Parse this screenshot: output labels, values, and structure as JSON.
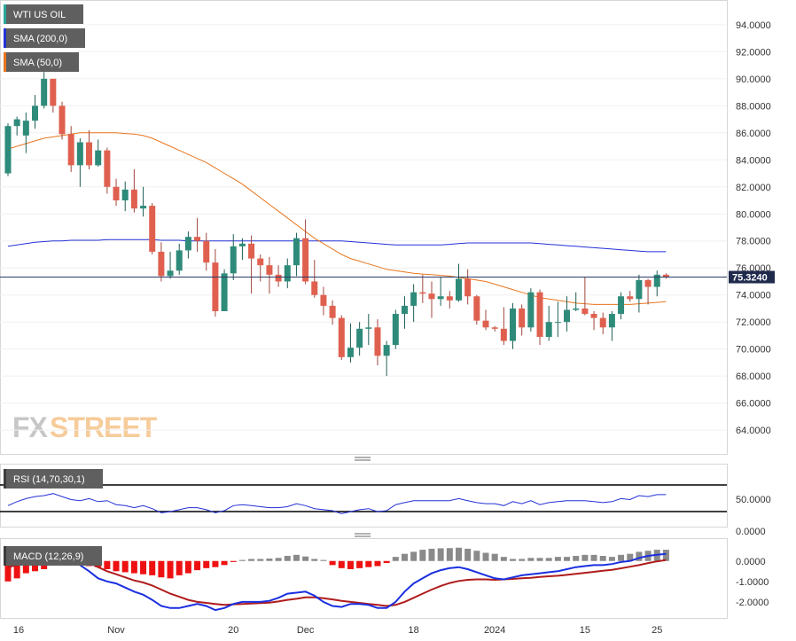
{
  "chart_data": [
    {
      "type": "candlestick",
      "title": "WTI US OIL",
      "legend": [
        {
          "label": "WTI US OIL",
          "color": "#26a69a"
        },
        {
          "label": "SMA (200,0)",
          "color": "#2331d6"
        },
        {
          "label": "SMA (50,0)",
          "color": "#e8761f"
        }
      ],
      "y_ticks": [
        "94.0000",
        "92.0000",
        "90.0000",
        "88.0000",
        "86.0000",
        "84.0000",
        "82.0000",
        "80.0000",
        "78.0000",
        "76.0000",
        "74.0000",
        "72.0000",
        "70.0000",
        "68.0000",
        "66.0000",
        "64.0000"
      ],
      "ylim": [
        62.5,
        95.5
      ],
      "last_price": "75.3240",
      "x_ticks": [
        {
          "label": "16",
          "i": 0
        },
        {
          "label": "Nov",
          "i": 12
        },
        {
          "label": "20",
          "i": 25
        },
        {
          "label": "Dec",
          "i": 33
        },
        {
          "label": "18",
          "i": 45
        },
        {
          "label": "2024",
          "i": 54
        },
        {
          "label": "15",
          "i": 64
        },
        {
          "label": "25",
          "i": 72
        }
      ],
      "candles": [
        [
          83.0,
          86.5,
          82.8,
          86.7
        ],
        [
          86.5,
          87.0,
          85.8,
          87.2
        ],
        [
          85.8,
          86.9,
          84.5,
          87.5
        ],
        [
          86.9,
          88.0,
          86.3,
          88.8
        ],
        [
          88.0,
          90.0,
          87.8,
          90.5
        ],
        [
          90.0,
          88.0,
          87.5,
          89.8
        ],
        [
          88.0,
          85.9,
          85.5,
          88.3
        ],
        [
          85.9,
          83.6,
          83.1,
          86.5
        ],
        [
          83.6,
          85.3,
          82.0,
          85.6
        ],
        [
          85.3,
          83.6,
          83.3,
          86.2
        ],
        [
          83.6,
          84.7,
          83.5,
          85.5
        ],
        [
          84.7,
          82.0,
          81.5,
          84.9
        ],
        [
          82.0,
          81.0,
          80.6,
          82.6
        ],
        [
          81.0,
          81.8,
          80.2,
          82.4
        ],
        [
          81.8,
          80.4,
          80.1,
          83.3
        ],
        [
          80.4,
          80.6,
          79.8,
          82.0
        ],
        [
          80.6,
          77.2,
          77.0,
          80.8
        ],
        [
          77.2,
          75.4,
          75.0,
          77.9
        ],
        [
          75.4,
          75.8,
          75.2,
          77.2
        ],
        [
          75.8,
          77.3,
          75.5,
          77.8
        ],
        [
          77.3,
          78.3,
          76.7,
          78.7
        ],
        [
          78.3,
          78.0,
          77.2,
          79.7
        ],
        [
          78.0,
          76.4,
          75.8,
          78.6
        ],
        [
          76.4,
          72.8,
          72.4,
          77.4
        ],
        [
          72.8,
          75.6,
          72.8,
          75.9
        ],
        [
          75.6,
          77.6,
          75.1,
          78.5
        ],
        [
          77.6,
          77.8,
          76.6,
          78.2
        ],
        [
          77.8,
          76.7,
          74.1,
          78.4
        ],
        [
          76.7,
          76.2,
          75.0,
          77.0
        ],
        [
          76.2,
          75.5,
          74.1,
          76.8
        ],
        [
          75.5,
          75.0,
          74.6,
          76.2
        ],
        [
          75.0,
          76.2,
          74.5,
          76.7
        ],
        [
          76.2,
          78.2,
          75.4,
          78.6
        ],
        [
          78.2,
          75.0,
          74.8,
          79.6
        ],
        [
          75.0,
          74.0,
          73.8,
          76.6
        ],
        [
          74.0,
          73.2,
          72.5,
          74.6
        ],
        [
          73.2,
          72.3,
          71.8,
          73.6
        ],
        [
          72.3,
          69.4,
          69.2,
          72.5
        ],
        [
          69.4,
          70.1,
          69.0,
          71.9
        ],
        [
          70.1,
          71.5,
          69.5,
          72.0
        ],
        [
          71.5,
          71.6,
          70.3,
          72.6
        ],
        [
          71.6,
          69.5,
          68.8,
          72.2
        ],
        [
          69.5,
          70.3,
          68.0,
          70.6
        ],
        [
          70.3,
          72.6,
          70.0,
          72.9
        ],
        [
          72.6,
          73.2,
          71.5,
          73.9
        ],
        [
          73.2,
          74.2,
          72.0,
          74.8
        ],
        [
          74.2,
          74.1,
          73.4,
          75.5
        ],
        [
          74.1,
          73.7,
          72.3,
          75.0
        ],
        [
          73.7,
          73.9,
          73.2,
          75.3
        ],
        [
          73.9,
          73.6,
          73.0,
          74.3
        ],
        [
          73.6,
          75.2,
          73.5,
          76.3
        ],
        [
          75.2,
          73.9,
          73.3,
          75.9
        ],
        [
          73.9,
          72.1,
          71.8,
          74.0
        ],
        [
          72.1,
          71.6,
          71.4,
          72.9
        ],
        [
          71.6,
          71.5,
          71.3,
          71.7
        ],
        [
          71.5,
          70.6,
          70.3,
          73.1
        ],
        [
          70.6,
          73.0,
          70.0,
          73.4
        ],
        [
          73.0,
          71.6,
          71.0,
          73.3
        ],
        [
          71.6,
          74.2,
          71.3,
          74.5
        ],
        [
          74.2,
          70.9,
          70.3,
          74.4
        ],
        [
          70.9,
          72.0,
          70.6,
          73.2
        ],
        [
          72.0,
          72.0,
          70.9,
          73.5
        ],
        [
          72.0,
          72.9,
          71.3,
          73.9
        ],
        [
          72.9,
          73.0,
          72.8,
          74.2
        ],
        [
          73.0,
          72.6,
          72.5,
          75.3
        ],
        [
          72.6,
          72.3,
          71.4,
          72.8
        ],
        [
          72.3,
          71.6,
          71.1,
          72.7
        ],
        [
          71.6,
          72.6,
          70.6,
          72.8
        ],
        [
          72.6,
          73.9,
          72.2,
          74.2
        ],
        [
          73.9,
          73.7,
          73.5,
          74.3
        ],
        [
          73.7,
          75.1,
          72.7,
          75.5
        ],
        [
          75.1,
          74.6,
          73.3,
          75.2
        ],
        [
          74.6,
          75.5,
          73.9,
          75.8
        ],
        [
          75.5,
          75.3,
          75.2,
          75.6
        ]
      ],
      "sma200": [
        77.6,
        77.7,
        77.8,
        77.9,
        77.95,
        78.0,
        78.0,
        78.05,
        78.05,
        78.05,
        78.05,
        78.1,
        78.1,
        78.1,
        78.1,
        78.1,
        78.1,
        78.05,
        78.05,
        78.05,
        78.0,
        78.0,
        78.0,
        78.0,
        78.0,
        78.0,
        78.0,
        78.0,
        78.0,
        78.0,
        78.0,
        78.0,
        78.0,
        78.0,
        78.0,
        78.0,
        78.0,
        78.0,
        77.95,
        77.9,
        77.85,
        77.8,
        77.75,
        77.7,
        77.7,
        77.7,
        77.7,
        77.7,
        77.7,
        77.75,
        77.8,
        77.85,
        77.85,
        77.85,
        77.85,
        77.85,
        77.85,
        77.85,
        77.85,
        77.8,
        77.75,
        77.7,
        77.65,
        77.6,
        77.55,
        77.5,
        77.45,
        77.4,
        77.35,
        77.3,
        77.25,
        77.2,
        77.2,
        77.2
      ],
      "sma50": [
        84.8,
        85.0,
        85.2,
        85.4,
        85.6,
        85.7,
        85.8,
        85.9,
        86.0,
        86.0,
        86.0,
        86.0,
        86.0,
        85.95,
        85.9,
        85.8,
        85.6,
        85.3,
        85.0,
        84.7,
        84.4,
        84.1,
        83.8,
        83.4,
        83.0,
        82.6,
        82.2,
        81.7,
        81.2,
        80.7,
        80.2,
        79.7,
        79.2,
        78.7,
        78.2,
        77.8,
        77.4,
        77.0,
        76.7,
        76.5,
        76.3,
        76.1,
        75.9,
        75.8,
        75.7,
        75.6,
        75.55,
        75.5,
        75.45,
        75.4,
        75.3,
        75.2,
        75.1,
        75.0,
        74.8,
        74.6,
        74.4,
        74.2,
        74.0,
        73.8,
        73.7,
        73.6,
        73.5,
        73.4,
        73.35,
        73.3,
        73.3,
        73.3,
        73.3,
        73.3,
        73.35,
        73.4,
        73.45,
        73.5
      ]
    },
    {
      "type": "line",
      "title": "RSI (14,70,30,1)",
      "y_ticks": [
        "50.0000"
      ],
      "levels": [
        70,
        30
      ],
      "ylim": [
        20,
        80
      ],
      "rsi": [
        40,
        44,
        47,
        49,
        50,
        52,
        49,
        46,
        45,
        47,
        44,
        45,
        41,
        40,
        38,
        40,
        37,
        33,
        34,
        36,
        38,
        38,
        36,
        33,
        35,
        40,
        41,
        40,
        39,
        38,
        38,
        39,
        42,
        40,
        37,
        36,
        35,
        32,
        34,
        36,
        37,
        34,
        35,
        41,
        43,
        45,
        45,
        45,
        45,
        45,
        47,
        45,
        43,
        42,
        42,
        40,
        44,
        42,
        45,
        41,
        43,
        44,
        45,
        45,
        45,
        44,
        43,
        44,
        47,
        46,
        50,
        49,
        51,
        51
      ]
    },
    {
      "type": "bar",
      "title": "MACD (12,26,9)",
      "y_ticks": [
        "0.0000",
        "-1.0000",
        "-2.0000"
      ],
      "ylim": [
        -2.7,
        0.9
      ],
      "hist": [
        -1.0,
        -0.85,
        -0.6,
        -0.5,
        -0.4,
        -0.2,
        -0.05,
        -0.1,
        -0.2,
        -0.25,
        -0.3,
        -0.4,
        -0.5,
        -0.55,
        -0.6,
        -0.65,
        -0.7,
        -0.8,
        -0.85,
        -0.7,
        -0.6,
        -0.45,
        -0.35,
        -0.3,
        -0.2,
        -0.05,
        0.05,
        0.1,
        0.1,
        0.12,
        0.15,
        0.25,
        0.3,
        0.22,
        0.1,
        0.05,
        -0.2,
        -0.35,
        -0.4,
        -0.35,
        -0.3,
        -0.25,
        -0.1,
        0.2,
        0.35,
        0.45,
        0.55,
        0.6,
        0.62,
        0.63,
        0.65,
        0.6,
        0.5,
        0.4,
        0.35,
        0.2,
        0.1,
        0.1,
        0.15,
        0.15,
        0.15,
        0.2,
        0.2,
        0.25,
        0.3,
        0.3,
        0.25,
        0.2,
        0.3,
        0.35,
        0.45,
        0.5,
        0.55,
        0.55
      ],
      "macd": [
        0.3,
        0.5,
        0.45,
        0.3,
        0.25,
        0.2,
        0.25,
        0.1,
        -0.2,
        -0.5,
        -0.85,
        -1.0,
        -1.1,
        -1.3,
        -1.5,
        -1.65,
        -1.9,
        -2.2,
        -2.3,
        -2.3,
        -2.2,
        -2.1,
        -2.2,
        -2.4,
        -2.3,
        -2.1,
        -2.0,
        -2.0,
        -2.0,
        -1.95,
        -1.8,
        -1.6,
        -1.55,
        -1.5,
        -1.7,
        -2.0,
        -2.2,
        -2.25,
        -2.1,
        -2.1,
        -2.15,
        -2.3,
        -2.3,
        -2.0,
        -1.5,
        -1.1,
        -0.85,
        -0.6,
        -0.45,
        -0.35,
        -0.3,
        -0.4,
        -0.55,
        -0.7,
        -0.85,
        -0.9,
        -0.8,
        -0.7,
        -0.65,
        -0.6,
        -0.55,
        -0.5,
        -0.4,
        -0.3,
        -0.25,
        -0.2,
        -0.2,
        -0.15,
        -0.05,
        0.0,
        0.15,
        0.25,
        0.3,
        0.35
      ],
      "signal": [
        -0.3,
        -0.2,
        -0.1,
        0.0,
        0.1,
        0.15,
        0.2,
        0.18,
        0.1,
        -0.1,
        -0.3,
        -0.5,
        -0.65,
        -0.8,
        -0.95,
        -1.05,
        -1.2,
        -1.4,
        -1.6,
        -1.75,
        -1.9,
        -2.0,
        -2.05,
        -2.1,
        -2.15,
        -2.12,
        -2.1,
        -2.08,
        -2.06,
        -2.04,
        -1.98,
        -1.9,
        -1.85,
        -1.78,
        -1.78,
        -1.82,
        -1.88,
        -1.95,
        -2.0,
        -2.05,
        -2.1,
        -2.15,
        -2.2,
        -2.15,
        -2.0,
        -1.8,
        -1.6,
        -1.4,
        -1.22,
        -1.08,
        -0.98,
        -0.92,
        -0.9,
        -0.9,
        -0.92,
        -0.9,
        -0.88,
        -0.85,
        -0.82,
        -0.78,
        -0.75,
        -0.72,
        -0.68,
        -0.63,
        -0.58,
        -0.53,
        -0.48,
        -0.43,
        -0.36,
        -0.28,
        -0.2,
        -0.1,
        -0.02,
        0.05
      ]
    }
  ]
}
